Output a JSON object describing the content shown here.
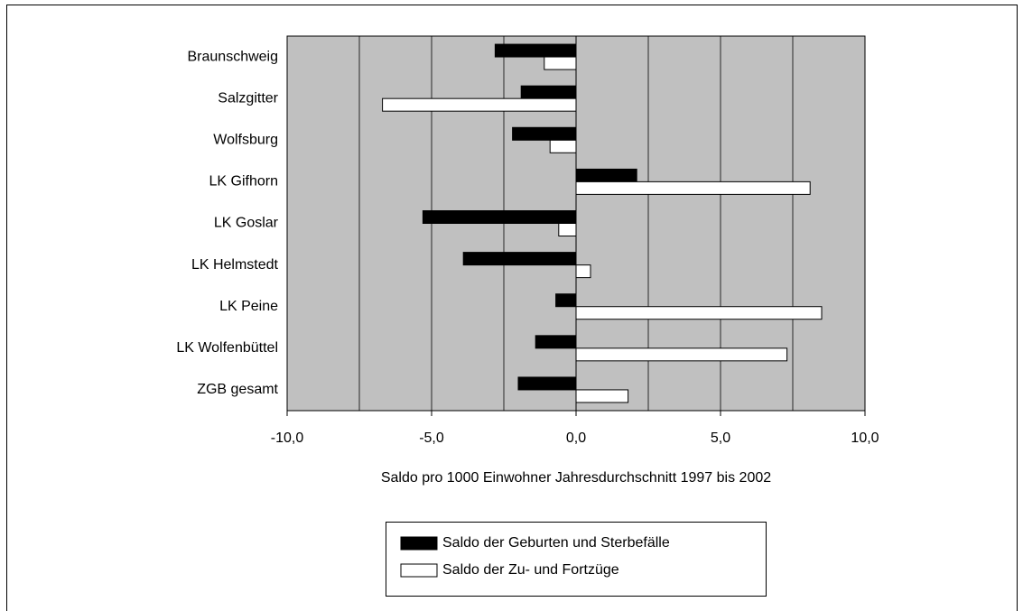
{
  "chart_data": {
    "type": "barh",
    "categories": [
      "Braunschweig",
      "Salzgitter",
      "Wolfsburg",
      "LK Gifhorn",
      "LK Goslar",
      "LK Helmstedt",
      "LK Peine",
      "LK Wolfenbüttel",
      "ZGB gesamt"
    ],
    "series": [
      {
        "name": "Saldo der Geburten und Sterbefälle",
        "color": "#000000",
        "values": [
          -2.8,
          -1.9,
          -2.2,
          2.1,
          -5.3,
          -3.9,
          -0.7,
          -1.4,
          -2.0
        ]
      },
      {
        "name": "Saldo der Zu- und Fortzüge",
        "color": "#ffffff",
        "values": [
          -1.1,
          -6.7,
          -0.9,
          8.1,
          -0.6,
          0.5,
          8.5,
          7.3,
          1.8
        ]
      }
    ],
    "xlabel": "Saldo pro 1000 Einwohner Jahresdurchschnitt 1997 bis 2002",
    "xlim": [
      -10,
      10
    ],
    "xticks": [
      {
        "value": -10,
        "label": "-10,0"
      },
      {
        "value": -5,
        "label": "-5,0"
      },
      {
        "value": 0,
        "label": "0,0"
      },
      {
        "value": 5,
        "label": "5,0"
      },
      {
        "value": 10,
        "label": "10,0"
      }
    ],
    "xgrid": [
      -7.5,
      -5,
      -2.5,
      2.5,
      5,
      7.5
    ],
    "plot_background": "#c0c0c0",
    "legend": "bottom"
  }
}
